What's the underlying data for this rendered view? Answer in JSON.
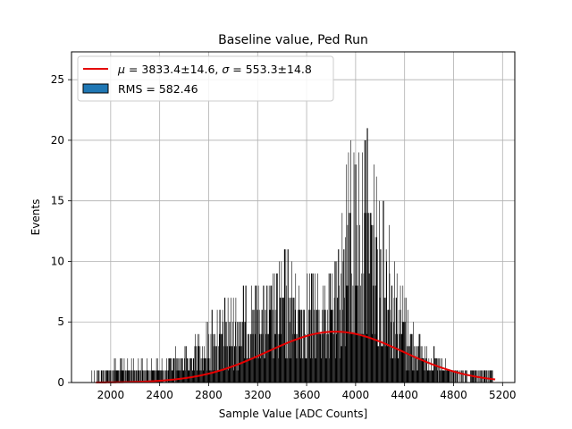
{
  "chart_data": {
    "type": "bar",
    "title": "Baseline value, Ped Run",
    "xlabel": "Sample Value [ADC Counts]",
    "ylabel": "Events",
    "xlim": [
      1680,
      5300
    ],
    "ylim": [
      0,
      27.3
    ],
    "xticks": [
      "2000",
      "2400",
      "2800",
      "3200",
      "3600",
      "4000",
      "4400",
      "4800",
      "5200"
    ],
    "yticks": [
      "0",
      "5",
      "10",
      "15",
      "20",
      "25"
    ],
    "grid": true,
    "legend_position": "top-left",
    "histogram": {
      "name": "RMS = 582.46",
      "x_range": [
        1840,
        5140
      ],
      "color": "#000000",
      "legend_patch_color": "#1f77b4",
      "approx_peak": {
        "x": 4095,
        "value": 21
      },
      "envelope": [
        {
          "x": 1840,
          "value": 1
        },
        {
          "x": 1950,
          "value": 1
        },
        {
          "x": 2000,
          "value": 2
        },
        {
          "x": 2150,
          "value": 2
        },
        {
          "x": 2300,
          "value": 2
        },
        {
          "x": 2450,
          "value": 2
        },
        {
          "x": 2600,
          "value": 3
        },
        {
          "x": 2750,
          "value": 4
        },
        {
          "x": 2850,
          "value": 6
        },
        {
          "x": 3000,
          "value": 7
        },
        {
          "x": 3150,
          "value": 8
        },
        {
          "x": 3300,
          "value": 8
        },
        {
          "x": 3440,
          "value": 11
        },
        {
          "x": 3550,
          "value": 8
        },
        {
          "x": 3650,
          "value": 9
        },
        {
          "x": 3750,
          "value": 8
        },
        {
          "x": 3850,
          "value": 10
        },
        {
          "x": 3900,
          "value": 15
        },
        {
          "x": 3950,
          "value": 20
        },
        {
          "x": 4000,
          "value": 18
        },
        {
          "x": 4050,
          "value": 19
        },
        {
          "x": 4095,
          "value": 21
        },
        {
          "x": 4150,
          "value": 18
        },
        {
          "x": 4200,
          "value": 15
        },
        {
          "x": 4250,
          "value": 15
        },
        {
          "x": 4320,
          "value": 10
        },
        {
          "x": 4400,
          "value": 7
        },
        {
          "x": 4500,
          "value": 4
        },
        {
          "x": 4600,
          "value": 3
        },
        {
          "x": 4700,
          "value": 2
        },
        {
          "x": 4800,
          "value": 1
        },
        {
          "x": 4950,
          "value": 1
        },
        {
          "x": 5120,
          "value": 1
        },
        {
          "x": 5140,
          "value": 0
        }
      ]
    },
    "fit": {
      "name": "μ = 3833.4±14.6, σ = 553.3±14.8",
      "type": "gaussian",
      "mu": 3833.4,
      "sigma": 553.3,
      "amplitude": 4.2,
      "x_range": [
        1880,
        5140
      ],
      "color": "#e50000"
    }
  },
  "legend": {
    "fit_label_mu": "μ",
    "fit_label_mu_value": " = 3833.4±14.6, ",
    "fit_label_sigma": "σ",
    "fit_label_sigma_value": " = 553.3±14.8",
    "hist_label": "RMS = 582.46"
  }
}
